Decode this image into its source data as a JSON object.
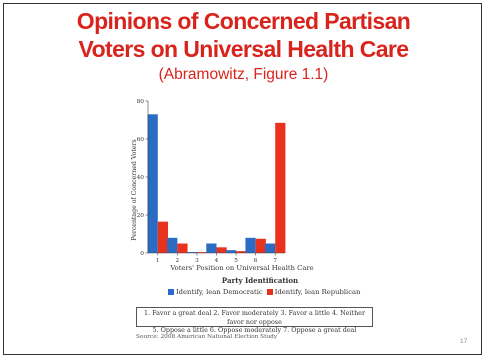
{
  "slide": {
    "title_line1": "Opinions of Concerned Partisan",
    "title_line2": "Voters on Universal Health Care",
    "subtitle": "(Abramowitz, Figure 1.1)",
    "page_number": "17"
  },
  "legend": {
    "title": "Party Identification",
    "items": [
      {
        "label": "Identify, lean Democratic",
        "color": "#2a6cc4"
      },
      {
        "label": "Identify, lean Republican",
        "color": "#e8321e"
      }
    ]
  },
  "key": {
    "line1": "1. Favor a great deal  2. Favor moderately  3. Favor a little  4. Neither favor nor oppose",
    "line2": "5. Oppose a little  6. Oppose moderately  7. Oppose a great deal"
  },
  "source": "Source: 2008 American National Election Study",
  "chart_data": {
    "type": "bar",
    "categories": [
      "1",
      "2",
      "3",
      "4",
      "5",
      "6",
      "7"
    ],
    "series": [
      {
        "name": "Identify, lean Democratic",
        "color": "#2a6cc4",
        "values": [
          73,
          8,
          0.5,
          5,
          1.5,
          8,
          5
        ]
      },
      {
        "name": "Identify, lean Republican",
        "color": "#e8321e",
        "values": [
          16.5,
          5,
          0.5,
          3,
          1,
          7.5,
          68.5
        ]
      }
    ],
    "title": "",
    "xlabel": "Voters' Position on Universal Health Care",
    "ylabel": "Percentage of Concerned Voters",
    "ylim": [
      0,
      80
    ],
    "yticks": [
      0,
      20,
      40,
      60,
      80
    ],
    "grid": false,
    "legend_position": "bottom"
  }
}
